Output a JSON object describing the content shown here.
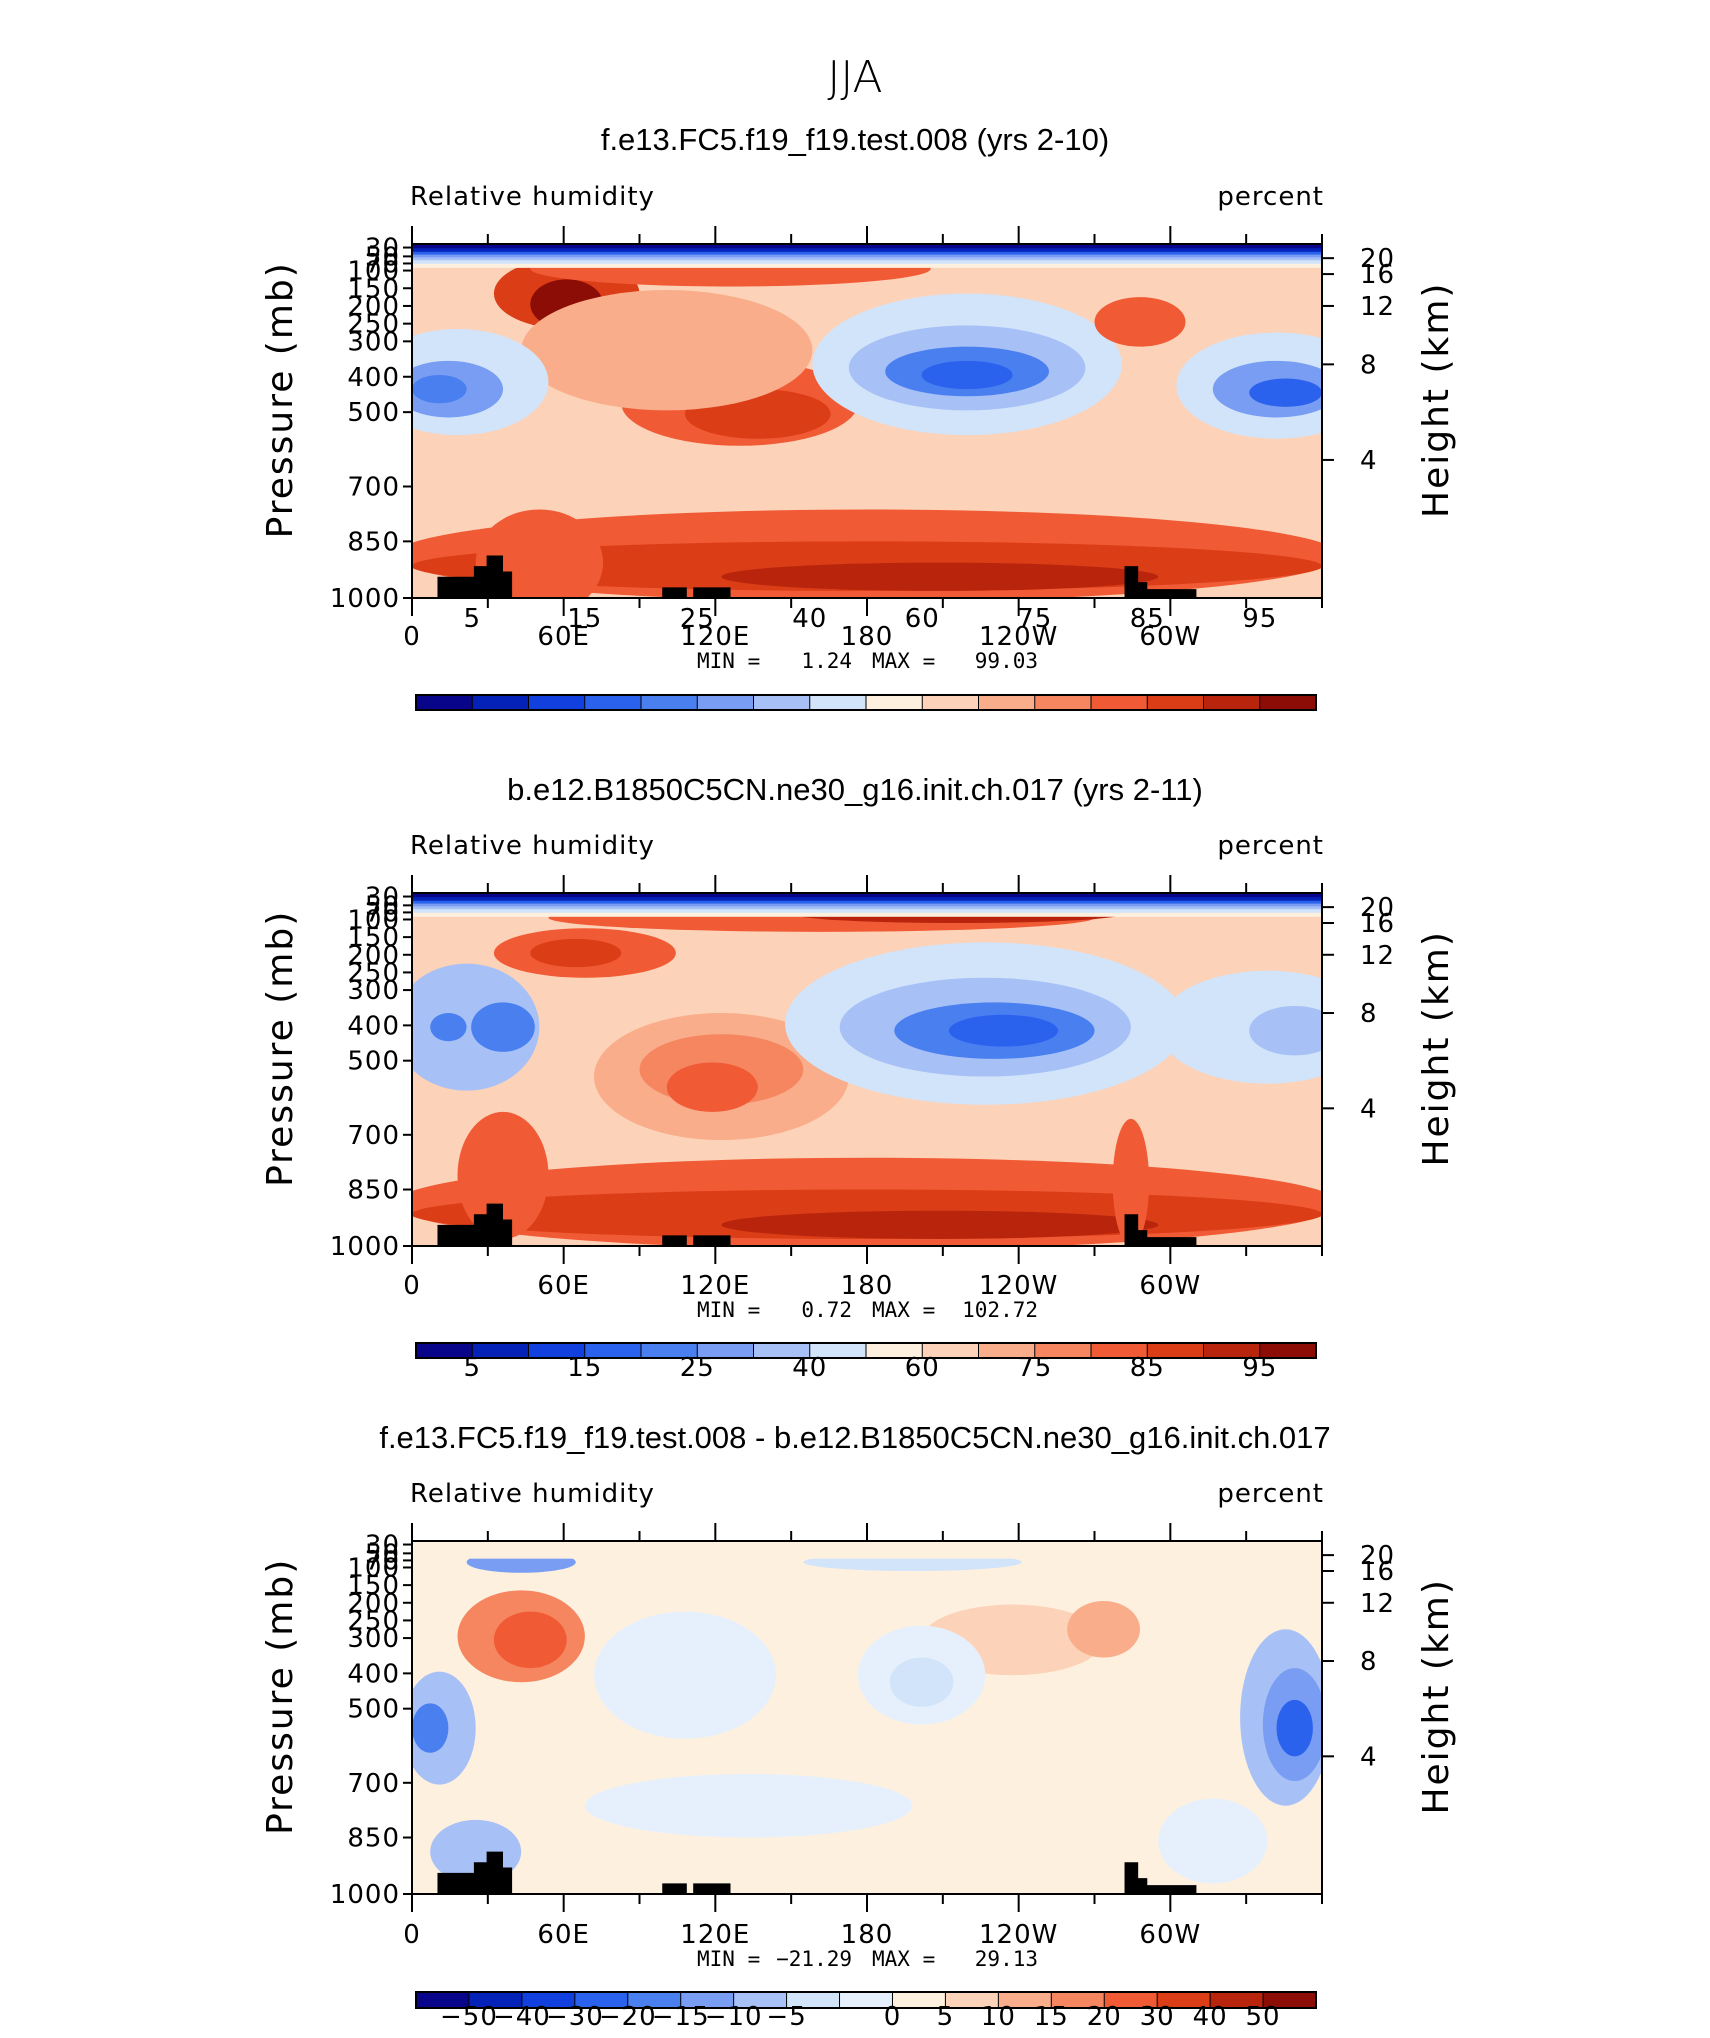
{
  "figure_title": "JJA",
  "colors": {
    "rh_palette": [
      "#08058a",
      "#0522b8",
      "#1140de",
      "#2a62ee",
      "#4a7ff0",
      "#789df2",
      "#a7c1f6",
      "#d2e4fa",
      "#fdf0df",
      "#fcd2b8",
      "#f9ad8a",
      "#f5865f",
      "#f05a34",
      "#db3d17",
      "#b9250c",
      "#8c0d06"
    ],
    "diff_palette": [
      "#08058a",
      "#0522b8",
      "#1140de",
      "#2a62ee",
      "#4a7ff0",
      "#789df2",
      "#a7c1f6",
      "#d2e4fa",
      "#e6f0fd",
      "#fdf0df",
      "#fcd2b8",
      "#f9ad8a",
      "#f5865f",
      "#f05a34",
      "#db3d17",
      "#b9250c",
      "#8c0d06"
    ],
    "topography": "#000000"
  },
  "chart_data": [
    {
      "type": "heatmap",
      "title": "f.e13.FC5.f19_f19.test.008 (yrs 2-10)",
      "left_label": "Relative  humidity",
      "right_label": "percent",
      "ylabel": "Pressure  (mb)",
      "ylabel_right": "Height  (km)",
      "x_tick_labels": [
        "0",
        "60E",
        "120E",
        "180",
        "120W",
        "60W"
      ],
      "y_tick_labels": [
        "30",
        "50",
        "70",
        "100",
        "150",
        "200",
        "250",
        "300",
        "400",
        "500",
        "700",
        "850",
        "1000"
      ],
      "right_tick_labels": [
        "20",
        "16",
        "12",
        "8",
        "4"
      ],
      "stats": {
        "min_label": "MIN  =",
        "min": "1.24",
        "max_label": "MAX  =",
        "max": "99.03"
      },
      "colorbar_labels": [
        "5",
        "15",
        "25",
        "40",
        "60",
        "75",
        "85",
        "95"
      ],
      "palette": "rh",
      "field": "rh1"
    },
    {
      "type": "heatmap",
      "title": "b.e12.B1850C5CN.ne30_g16.init.ch.017 (yrs 2-11)",
      "left_label": "Relative  humidity",
      "right_label": "percent",
      "ylabel": "Pressure  (mb)",
      "ylabel_right": "Height  (km)",
      "x_tick_labels": [
        "0",
        "60E",
        "120E",
        "180",
        "120W",
        "60W"
      ],
      "y_tick_labels": [
        "30",
        "50",
        "70",
        "100",
        "150",
        "200",
        "250",
        "300",
        "400",
        "500",
        "700",
        "850",
        "1000"
      ],
      "right_tick_labels": [
        "20",
        "16",
        "12",
        "8",
        "4"
      ],
      "stats": {
        "min_label": "MIN  =",
        "min": "0.72",
        "max_label": "MAX  =",
        "max": "102.72"
      },
      "colorbar_labels": [
        "5",
        "15",
        "25",
        "40",
        "60",
        "75",
        "85",
        "95"
      ],
      "palette": "rh",
      "field": "rh2"
    },
    {
      "type": "heatmap",
      "title": "f.e13.FC5.f19_f19.test.008 - b.e12.B1850C5CN.ne30_g16.init.ch.017",
      "left_label": "Relative  humidity",
      "right_label": "percent",
      "ylabel": "Pressure  (mb)",
      "ylabel_right": "Height  (km)",
      "x_tick_labels": [
        "0",
        "60E",
        "120E",
        "180",
        "120W",
        "60W"
      ],
      "y_tick_labels": [
        "30",
        "50",
        "70",
        "100",
        "150",
        "200",
        "250",
        "300",
        "400",
        "500",
        "700",
        "850",
        "1000"
      ],
      "right_tick_labels": [
        "20",
        "16",
        "12",
        "8",
        "4"
      ],
      "stats": {
        "min_label": "MIN  =",
        "min": "−21.29",
        "max_label": "MAX  =",
        "max": "29.13"
      },
      "colorbar_labels": [
        "−50",
        "−40",
        "−30",
        "−20",
        "−15",
        "−10",
        "−5",
        "0",
        "5",
        "10",
        "15",
        "20",
        "30",
        "40",
        "50"
      ],
      "palette": "diff",
      "field": "diff"
    }
  ]
}
